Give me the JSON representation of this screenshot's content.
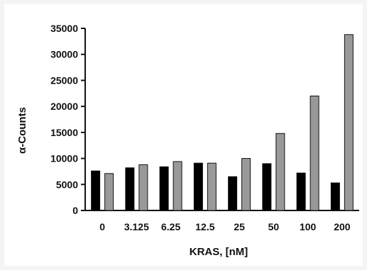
{
  "chart_data": {
    "type": "bar",
    "xlabel": "KRAS, [nM]",
    "ylabel": "α-Counts",
    "ylim": [
      0,
      35000
    ],
    "yticks": [
      0,
      5000,
      10000,
      15000,
      20000,
      25000,
      30000,
      35000
    ],
    "categories": [
      "0",
      "3.125",
      "6.25",
      "12.5",
      "25",
      "50",
      "100",
      "200"
    ],
    "series": [
      {
        "values": [
          7600,
          8200,
          8400,
          9100,
          6500,
          9000,
          7200,
          5300
        ],
        "color": "#000000"
      },
      {
        "values": [
          7100,
          8800,
          9400,
          9100,
          10000,
          14800,
          22000,
          33800
        ],
        "color": "#999999"
      }
    ],
    "grid": false,
    "legend": "none"
  }
}
